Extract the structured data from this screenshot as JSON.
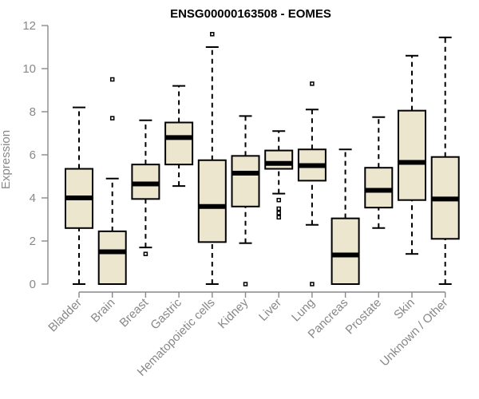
{
  "chart_data": {
    "type": "box",
    "title": "ENSG00000163508 - EOMES",
    "xlabel": "",
    "ylabel": "Expression",
    "ylim": [
      0,
      12
    ],
    "yticks": [
      0,
      2,
      4,
      6,
      8,
      10,
      12
    ],
    "grid": false,
    "categories": [
      "Bladder",
      "Brain",
      "Breast",
      "Gastric",
      "Hematopoietic cells",
      "Kidney",
      "Liver",
      "Lung",
      "Pancreas",
      "Prostate",
      "Skin",
      "Unknown / Other"
    ],
    "box_color": "#ede6cf",
    "boxes": [
      {
        "min": 0.0,
        "q1": 2.6,
        "median": 4.0,
        "q3": 5.35,
        "max": 8.2,
        "outliers": []
      },
      {
        "min": 0.0,
        "q1": 0.0,
        "median": 1.5,
        "q3": 2.45,
        "max": 4.9,
        "outliers": [
          7.7,
          9.5
        ]
      },
      {
        "min": 1.7,
        "q1": 3.95,
        "median": 4.65,
        "q3": 5.55,
        "max": 7.6,
        "outliers": [
          1.4
        ]
      },
      {
        "min": 4.55,
        "q1": 5.55,
        "median": 6.8,
        "q3": 7.5,
        "max": 9.2,
        "outliers": []
      },
      {
        "min": 0.0,
        "q1": 1.95,
        "median": 3.6,
        "q3": 5.75,
        "max": 11.0,
        "outliers": [
          11.6
        ]
      },
      {
        "min": 1.9,
        "q1": 3.6,
        "median": 5.15,
        "q3": 5.95,
        "max": 7.8,
        "outliers": [
          0.0
        ]
      },
      {
        "min": 4.2,
        "q1": 5.35,
        "median": 5.6,
        "q3": 6.2,
        "max": 7.1,
        "outliers": [
          3.1,
          3.3,
          3.5,
          3.9
        ]
      },
      {
        "min": 2.75,
        "q1": 4.8,
        "median": 5.5,
        "q3": 6.25,
        "max": 8.1,
        "outliers": [
          0.0,
          9.3
        ]
      },
      {
        "min": 0.0,
        "q1": 0.0,
        "median": 1.35,
        "q3": 3.05,
        "max": 6.25,
        "outliers": []
      },
      {
        "min": 2.6,
        "q1": 3.55,
        "median": 4.35,
        "q3": 5.4,
        "max": 7.75,
        "outliers": []
      },
      {
        "min": 1.4,
        "q1": 3.9,
        "median": 5.65,
        "q3": 8.05,
        "max": 10.6,
        "outliers": []
      },
      {
        "min": 0.0,
        "q1": 2.1,
        "median": 3.95,
        "q3": 5.9,
        "max": 11.45,
        "outliers": []
      }
    ]
  }
}
